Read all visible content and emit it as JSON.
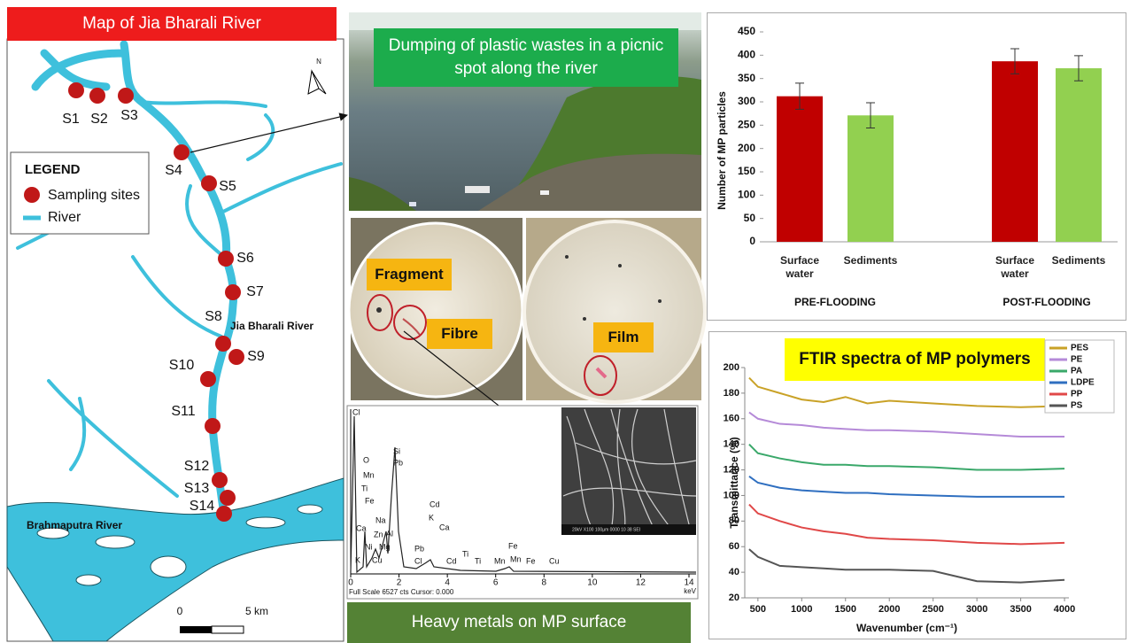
{
  "map": {
    "title": "Map of Jia Bharali River",
    "sites": [
      "S1",
      "S2",
      "S3",
      "S4",
      "S5",
      "S6",
      "S7",
      "S8",
      "S9",
      "S10",
      "S11",
      "S12",
      "S13",
      "S14"
    ],
    "legend": {
      "title": "LEGEND",
      "items": [
        "Sampling sites",
        "River"
      ]
    },
    "river_labels": [
      "Jia Bharali River",
      "Brahmaputra River"
    ],
    "north": "N",
    "scale": [
      "0",
      "5 km"
    ]
  },
  "photos": {
    "caption": "Dumping of plastic wastes in a picnic spot along the river",
    "labels": [
      "Fragment",
      "Fibre",
      "Film"
    ]
  },
  "eds": {
    "elements": [
      "Cl",
      "O",
      "Mn",
      "Ti",
      "Fe",
      "Ca",
      "Na",
      "Zn",
      "Al",
      "Ni",
      "Mg",
      "Cu",
      "K",
      "Si",
      "Pb",
      "Cd",
      "K",
      "Ca",
      "Pb",
      "Cl",
      "Cd",
      "Ti",
      "Ti",
      "Mn",
      "Fe",
      "Mn",
      "Fe",
      "Cu"
    ],
    "ticks": [
      0,
      2,
      4,
      6,
      8,
      10,
      12,
      14
    ],
    "unit": "keV",
    "footer": "Full Scale 6527 cts Cursor: 0.000",
    "inset": "20kV X100 100µm 0000 10 38 SEI",
    "caption": "Heavy metals on MP surface"
  },
  "chart_data": [
    {
      "type": "bar",
      "categories": [
        "Surface water",
        "Sediments",
        "Surface water",
        "Sediments"
      ],
      "groups": [
        "PRE-FLOODING",
        "POST-FLOODING"
      ],
      "values": [
        312,
        271,
        387,
        372
      ],
      "errors": [
        28,
        27,
        27,
        27
      ],
      "colors": [
        "#c00000",
        "#92d050",
        "#c00000",
        "#92d050"
      ],
      "ylabel": "Number of MP particles",
      "ylim": [
        0,
        450
      ],
      "yticks": [
        0,
        50,
        100,
        150,
        200,
        250,
        300,
        350,
        400,
        450
      ]
    },
    {
      "type": "line",
      "title": "FTIR spectra of MP polymers",
      "xlabel": "Wavenumber (cm⁻¹)",
      "ylabel": "Transmittance (%)",
      "x": [
        400,
        500,
        750,
        1000,
        1250,
        1500,
        1750,
        2000,
        2500,
        3000,
        3500,
        4000
      ],
      "series": [
        {
          "name": "PES",
          "color": "#c9a227",
          "values": [
            192,
            185,
            180,
            175,
            173,
            177,
            172,
            174,
            172,
            170,
            169,
            170
          ]
        },
        {
          "name": "PE",
          "color": "#b58ad8",
          "values": [
            165,
            160,
            156,
            155,
            153,
            152,
            151,
            151,
            150,
            148,
            146,
            146
          ]
        },
        {
          "name": "PA",
          "color": "#3aa86a",
          "values": [
            140,
            133,
            129,
            126,
            124,
            124,
            123,
            123,
            122,
            120,
            120,
            121
          ]
        },
        {
          "name": "LDPE",
          "color": "#2f6fc0",
          "values": [
            115,
            110,
            106,
            104,
            103,
            102,
            102,
            101,
            100,
            99,
            99,
            99
          ]
        },
        {
          "name": "PP",
          "color": "#e04848",
          "values": [
            93,
            86,
            80,
            75,
            72,
            70,
            67,
            66,
            65,
            63,
            62,
            63
          ]
        },
        {
          "name": "PS",
          "color": "#555555",
          "values": [
            58,
            52,
            45,
            44,
            43,
            42,
            42,
            42,
            41,
            33,
            32,
            34
          ]
        }
      ],
      "xlim": [
        350,
        4050
      ],
      "xticks": [
        500,
        1000,
        1500,
        2000,
        2500,
        3000,
        3500,
        4000
      ],
      "ylim": [
        20,
        200
      ],
      "yticks": [
        20,
        40,
        60,
        80,
        100,
        120,
        140,
        160,
        180,
        200
      ],
      "legend": "top-right"
    }
  ]
}
